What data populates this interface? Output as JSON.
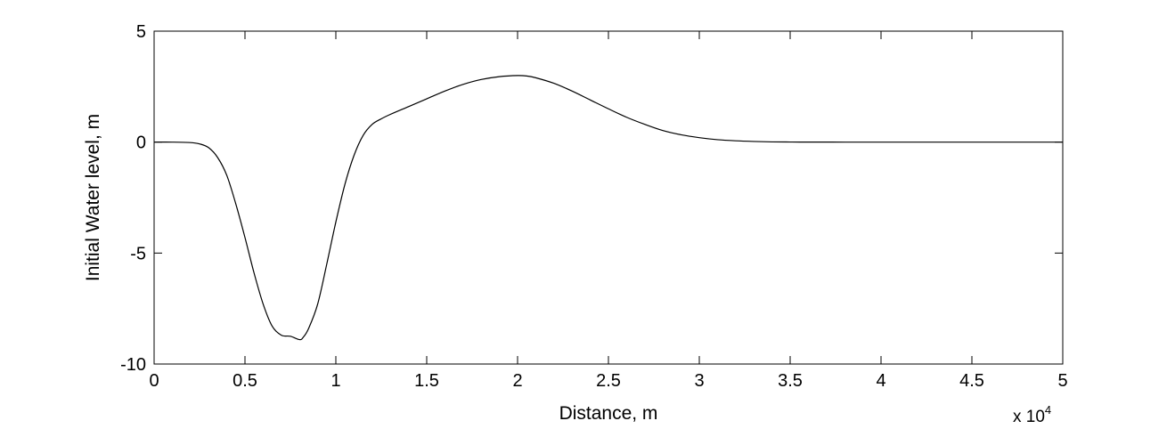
{
  "chart_data": {
    "type": "line",
    "xlabel": "Distance, m",
    "ylabel": "Initial Water level, m",
    "x_multiplier": {
      "base": "x 10",
      "exponent": "4"
    },
    "xlim": [
      0,
      50000
    ],
    "ylim": [
      -10,
      5
    ],
    "x_ticks": [
      0,
      5000,
      10000,
      15000,
      20000,
      25000,
      30000,
      35000,
      40000,
      45000,
      50000
    ],
    "x_tick_labels": [
      "0",
      "0.5",
      "1",
      "1.5",
      "2",
      "2.5",
      "3",
      "3.5",
      "4",
      "4.5",
      "5"
    ],
    "y_ticks": [
      -10,
      -5,
      0,
      5
    ],
    "y_tick_labels": [
      "-10",
      "-5",
      "0",
      "5"
    ],
    "grid": false,
    "series": [
      {
        "color": "#000000",
        "x": [
          0,
          1000,
          2000,
          2500,
          3000,
          3500,
          4000,
          4500,
          5000,
          5500,
          6000,
          6500,
          7000,
          7500,
          8000,
          8200,
          8500,
          9000,
          9500,
          10000,
          10500,
          11000,
          11500,
          12000,
          12500,
          13000,
          14000,
          15000,
          16000,
          17000,
          18000,
          19000,
          20000,
          20500,
          21000,
          22000,
          23000,
          24000,
          25000,
          26000,
          27000,
          28000,
          29000,
          30000,
          31000,
          32000,
          33000,
          34000,
          35000,
          36000,
          37000,
          38000,
          40000,
          45000,
          50000
        ],
        "y": [
          0,
          0,
          -0.02,
          -0.08,
          -0.25,
          -0.7,
          -1.5,
          -2.8,
          -4.3,
          -5.9,
          -7.3,
          -8.3,
          -8.7,
          -8.75,
          -8.9,
          -8.8,
          -8.4,
          -7.3,
          -5.5,
          -3.6,
          -1.9,
          -0.6,
          0.3,
          0.8,
          1.05,
          1.25,
          1.6,
          1.95,
          2.3,
          2.6,
          2.82,
          2.95,
          3.0,
          2.98,
          2.9,
          2.65,
          2.3,
          1.9,
          1.5,
          1.12,
          0.8,
          0.52,
          0.33,
          0.2,
          0.11,
          0.06,
          0.03,
          0.01,
          0.005,
          0.002,
          0.001,
          0,
          0,
          0,
          0
        ]
      }
    ]
  }
}
